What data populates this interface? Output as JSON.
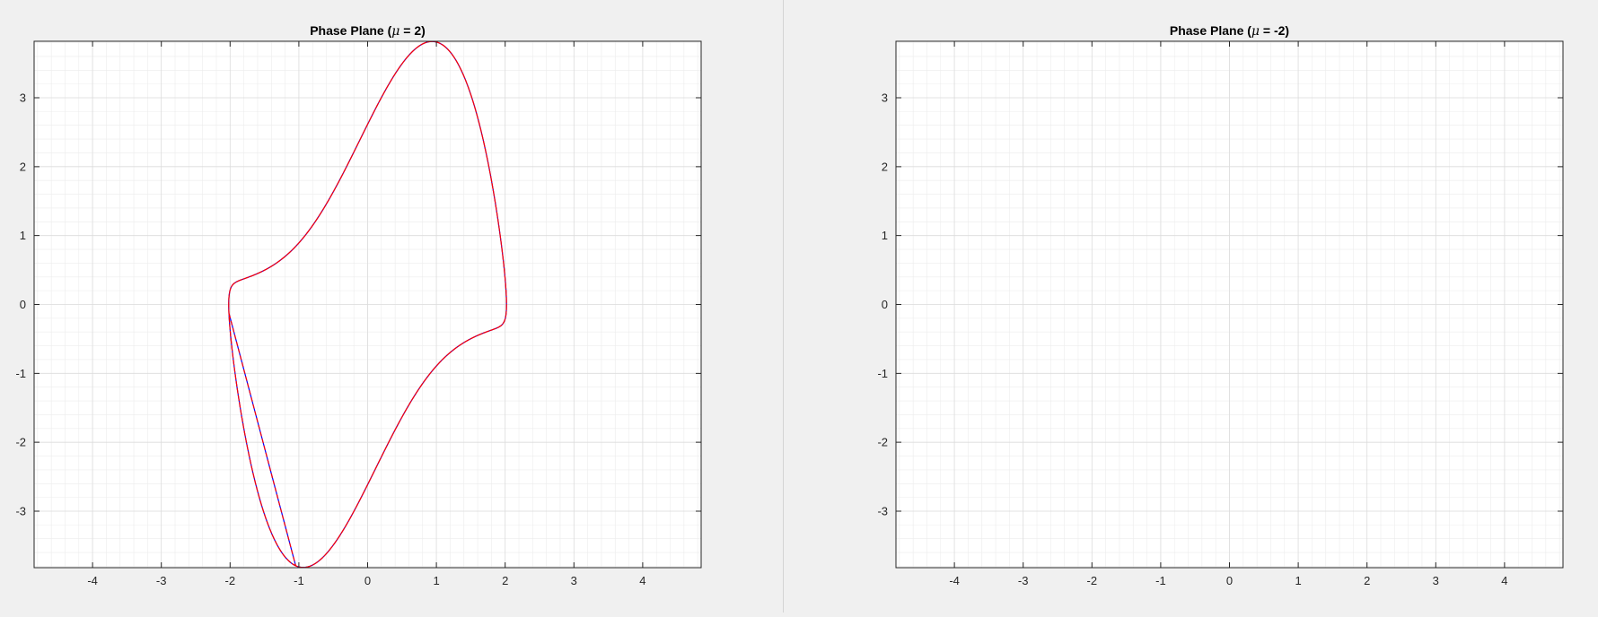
{
  "chart_data": [
    {
      "type": "line",
      "title_main": "Phase Plane (",
      "title_mu": "μ",
      "title_rest": " = 2)",
      "mu": 2,
      "xlim": [
        -4.85,
        4.85
      ],
      "ylim": [
        -3.82,
        3.82
      ],
      "xticks": [
        "-4",
        "-3",
        "-2",
        "-1",
        "0",
        "1",
        "2",
        "3",
        "4"
      ],
      "yticks": [
        "3",
        "2",
        "1",
        "0",
        "-1",
        "-2",
        "-3"
      ],
      "grid": "minor",
      "series": [
        {
          "color": "#0000ff",
          "dash": "solid"
        },
        {
          "color": "#ff0000",
          "dash": "dashed"
        }
      ]
    },
    {
      "type": "line",
      "title_main": "Phase Plane (",
      "title_mu": "μ",
      "title_rest": " = -2)",
      "mu": -2,
      "xlim": [
        -4.85,
        4.85
      ],
      "ylim": [
        -3.82,
        3.82
      ],
      "xticks": [
        "-4",
        "-3",
        "-2",
        "-1",
        "0",
        "1",
        "2",
        "3",
        "4"
      ],
      "yticks": [
        "3",
        "2",
        "1",
        "0",
        "-1",
        "-2",
        "-3"
      ],
      "grid": "minor",
      "series": [
        {
          "color": "#0000ff",
          "dash": "solid"
        },
        {
          "color": "#ff0000",
          "dash": "dashed"
        }
      ]
    }
  ]
}
